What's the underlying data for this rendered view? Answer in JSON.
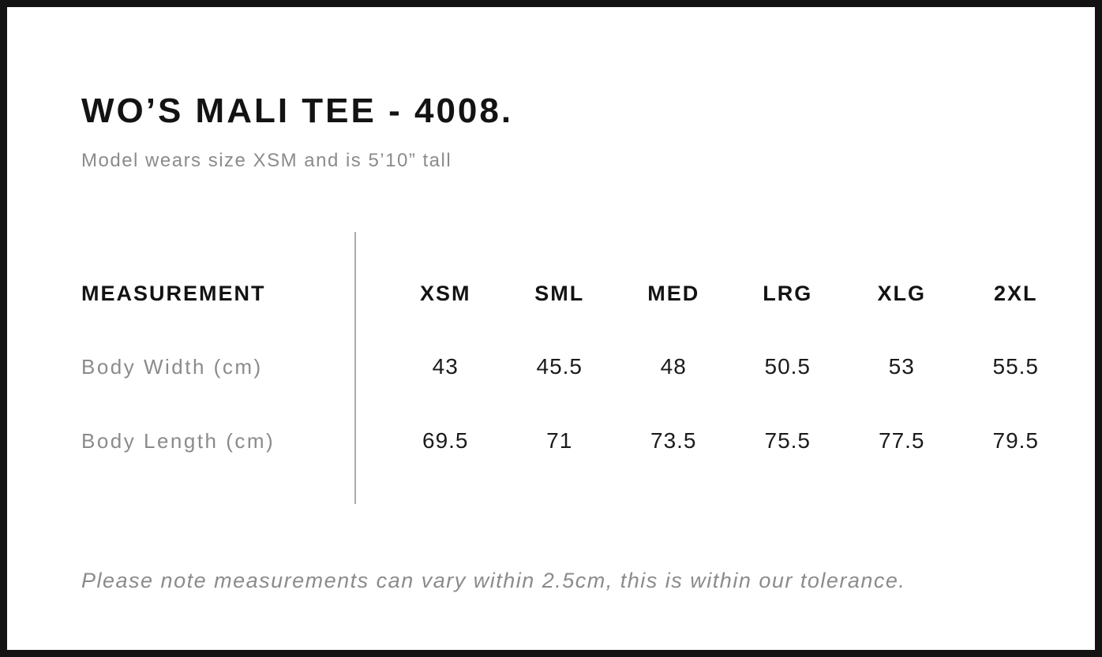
{
  "page": {
    "title": "WO’S MALI TEE - 4008.",
    "subtitle": "Model wears size XSM and is 5’10” tall",
    "tolerance_note": "Please note measurements can vary within 2.5cm, this is within our tolerance."
  },
  "size_chart": {
    "type": "table",
    "label_header": "MEASUREMENT",
    "size_headers": [
      "XSM",
      "SML",
      "MED",
      "LRG",
      "XLG",
      "2XL"
    ],
    "rows": [
      {
        "label": "Body Width (cm)",
        "values": [
          "43",
          "45.5",
          "48",
          "50.5",
          "53",
          "55.5"
        ]
      },
      {
        "label": "Body Length (cm)",
        "values": [
          "69.5",
          "71",
          "73.5",
          "75.5",
          "77.5",
          "79.5"
        ]
      }
    ]
  },
  "colors": {
    "ink": "#131313",
    "ink-soft": "#1b1b1b",
    "muted": "#8b8b8b",
    "line": "#ababab",
    "paper": "#ffffff"
  }
}
